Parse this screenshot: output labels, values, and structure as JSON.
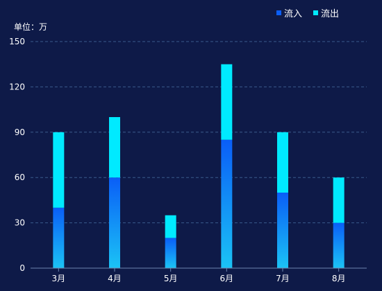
{
  "chart_data": {
    "type": "bar",
    "stacked": true,
    "unit_label": "单位：万",
    "categories": [
      "3月",
      "4月",
      "5月",
      "6月",
      "7月",
      "8月"
    ],
    "series": [
      {
        "name": "流入",
        "values": [
          40,
          60,
          20,
          85,
          50,
          30
        ],
        "color_top": "#0a5ef7",
        "color_bottom": "#1bc3f5"
      },
      {
        "name": "流出",
        "values": [
          50,
          40,
          15,
          50,
          40,
          30
        ],
        "color": "#00eaff"
      }
    ],
    "ylim": [
      0,
      150
    ],
    "yticks": [
      0,
      30,
      60,
      90,
      120,
      150
    ],
    "grid": true,
    "legend_position": "top-right"
  },
  "colors": {
    "background": "#0e1a48",
    "grid": "#3a5a8c",
    "axis": "#6e86b0"
  }
}
